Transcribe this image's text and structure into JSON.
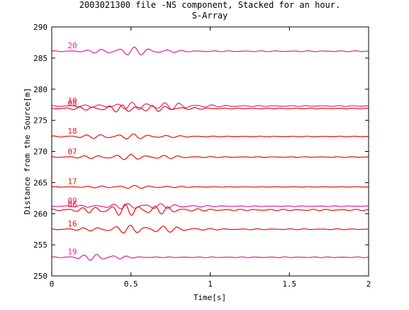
{
  "chart_data": {
    "type": "line",
    "title": "2003021300 file -NS component, Stacked for an hour.",
    "subtitle": "S-Array",
    "xlabel": "Time[s]",
    "ylabel": "Distance from the Source[m]",
    "xlim": [
      0,
      2
    ],
    "ylim": [
      250,
      290
    ],
    "xticks": [
      0,
      0.5,
      1,
      1.5,
      2
    ],
    "xtick_labels": [
      "0",
      "0.5",
      "1",
      "1.5",
      "2"
    ],
    "yticks": [
      250,
      255,
      260,
      265,
      270,
      275,
      280,
      285,
      290
    ],
    "ytick_labels": [
      "250",
      "255",
      "260",
      "265",
      "270",
      "275",
      "280",
      "285",
      "290"
    ],
    "grid": false,
    "traces": [
      {
        "label": "20",
        "offset": 286.1,
        "color": "#e0208a",
        "amp": 0.55,
        "center": 0.5,
        "width": 0.22,
        "freq": 10,
        "phase": 0.3
      },
      {
        "label": "10",
        "offset": 277.3,
        "color": "#e0208a",
        "amp": 0.55,
        "center": 0.62,
        "width": 0.3,
        "freq": 10,
        "phase": 1.1
      },
      {
        "label": "08",
        "offset": 276.9,
        "color": "#e8100c",
        "amp": 0.5,
        "center": 0.5,
        "width": 0.3,
        "freq": 11,
        "phase": 2.0
      },
      {
        "label": "18",
        "offset": 272.4,
        "color": "#e8100c",
        "amp": 0.35,
        "center": 0.45,
        "width": 0.3,
        "freq": 10,
        "phase": 0.6
      },
      {
        "label": "07",
        "offset": 269.1,
        "color": "#e8100c",
        "amp": 0.35,
        "center": 0.5,
        "width": 0.32,
        "freq": 10,
        "phase": 1.4
      },
      {
        "label": "17",
        "offset": 264.3,
        "color": "#e8100c",
        "amp": 0.2,
        "center": 0.5,
        "width": 0.3,
        "freq": 10,
        "phase": 0.2
      },
      {
        "label": "09",
        "offset": 261.2,
        "color": "#e0208a",
        "amp": 0.4,
        "center": 0.55,
        "width": 0.3,
        "freq": 10,
        "phase": 2.5
      },
      {
        "label": "06",
        "offset": 260.6,
        "color": "#e8100c",
        "amp": 0.8,
        "center": 0.5,
        "width": 0.28,
        "freq": 11,
        "phase": 0.9
      },
      {
        "label": "16",
        "offset": 257.5,
        "color": "#e8100c",
        "amp": 0.55,
        "center": 0.55,
        "width": 0.3,
        "freq": 10,
        "phase": 1.7
      },
      {
        "label": "19",
        "offset": 253.0,
        "color": "#e0208a",
        "amp": 0.45,
        "center": 0.3,
        "width": 0.15,
        "freq": 11,
        "phase": 0.4
      }
    ]
  }
}
